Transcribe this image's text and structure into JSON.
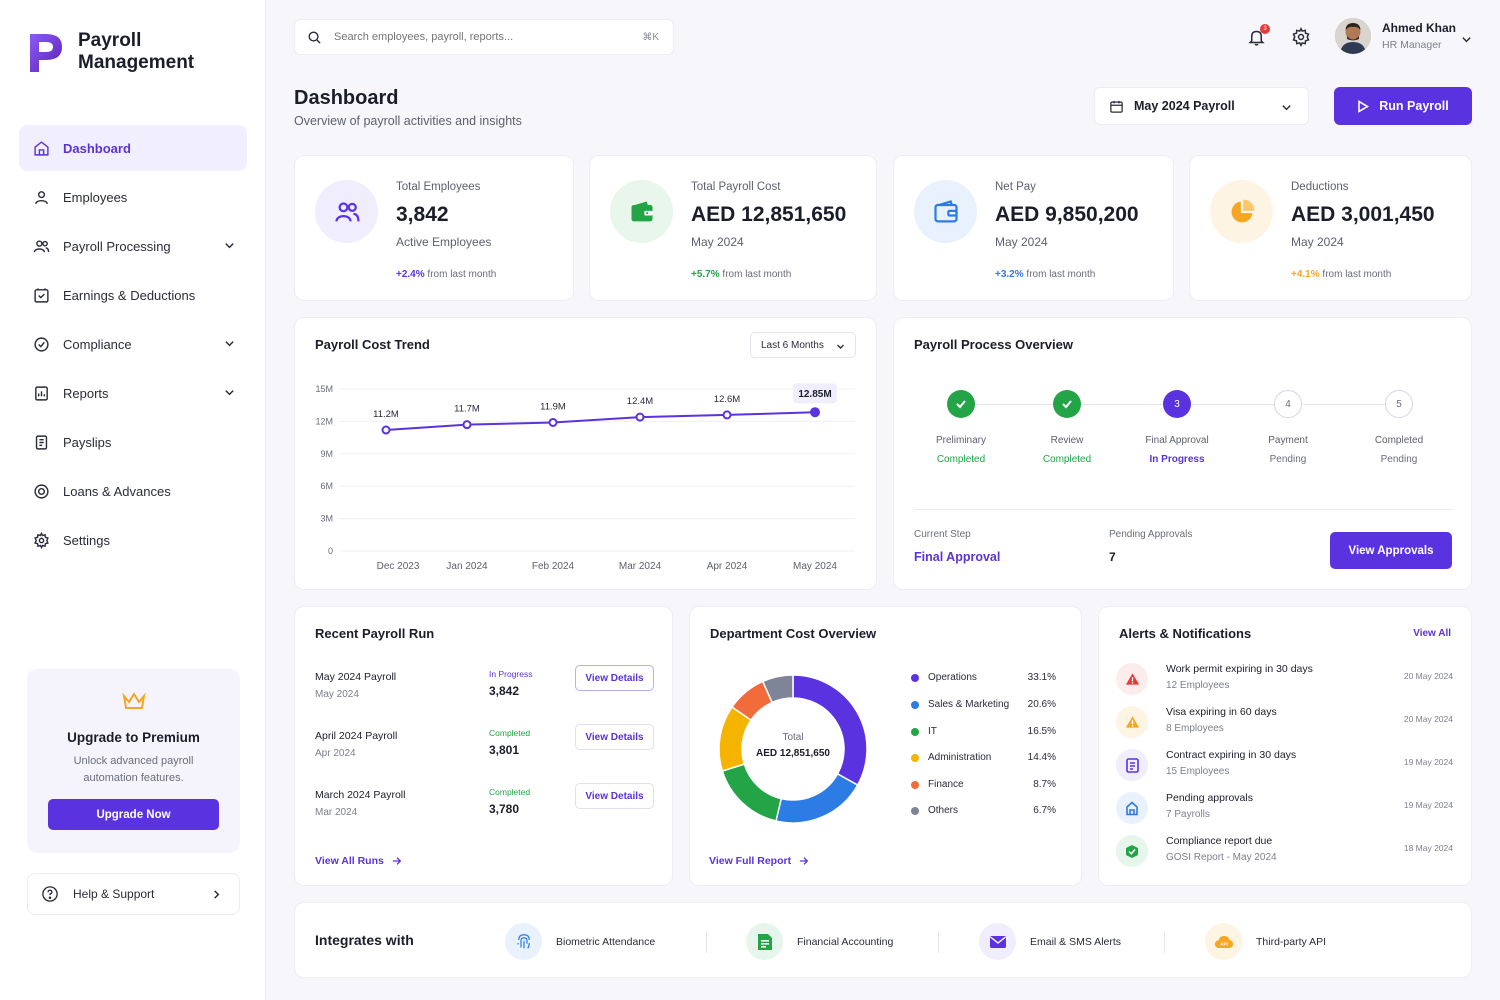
{
  "app": {
    "name_line1": "Payroll",
    "name_line2": "Management"
  },
  "colors": {
    "accent": "#5b32e0",
    "green": "#22a447",
    "blue": "#2d7be5",
    "orange": "#f5a623",
    "red": "#e53935"
  },
  "sidebar": {
    "items": [
      {
        "label": "Dashboard",
        "icon": "home-icon"
      },
      {
        "label": "Employees",
        "icon": "user-icon"
      },
      {
        "label": "Payroll Processing",
        "icon": "users-icon"
      },
      {
        "label": "Earnings & Deductions",
        "icon": "wallet-icon"
      },
      {
        "label": "Compliance",
        "icon": "check-circle-icon"
      },
      {
        "label": "Reports",
        "icon": "report-icon"
      },
      {
        "label": "Payslips",
        "icon": "document-icon"
      },
      {
        "label": "Loans & Advances",
        "icon": "coins-icon"
      },
      {
        "label": "Settings",
        "icon": "gear-icon"
      }
    ],
    "upgrade": {
      "title": "Upgrade to Premium",
      "subtitle": "Unlock advanced payroll automation features.",
      "button": "Upgrade Now"
    },
    "help": "Help & Support"
  },
  "topbar": {
    "search_placeholder": "Search employees, payroll, reports...",
    "shortcut": "⌘K",
    "notifications": "3",
    "user": {
      "name": "Ahmed Khan",
      "role": "HR Manager"
    }
  },
  "header": {
    "title": "Dashboard",
    "subtitle": "Overview of payroll activities and insights",
    "period": "May 2024 Payroll",
    "run_button": "Run Payroll"
  },
  "kpis": [
    {
      "label": "Total Employees",
      "value": "3,842",
      "sub": "Active Employees",
      "change": "+2.4%",
      "change_text": "from last month",
      "color": "#5b32e0"
    },
    {
      "label": "Total Payroll Cost",
      "value": "AED 12,851,650",
      "sub": "May 2024",
      "change": "+5.7%",
      "change_text": "from last month",
      "color": "#22a447"
    },
    {
      "label": "Net Pay",
      "value": "AED 9,850,200",
      "sub": "May 2024",
      "change": "+3.2%",
      "change_text": "from last month",
      "color": "#2d7be5"
    },
    {
      "label": "Deductions",
      "value": "AED 3,001,450",
      "sub": "May 2024",
      "change": "+4.1%",
      "change_text": "from last month",
      "color": "#f5a623"
    }
  ],
  "trend": {
    "title": "Payroll Cost Trend",
    "range": "Last 6 Months"
  },
  "chart_data": {
    "type": "line",
    "title": "Payroll Cost Trend",
    "categories": [
      "Dec 2023",
      "Jan 2024",
      "Feb 2024",
      "Mar 2024",
      "Apr 2024",
      "May 2024"
    ],
    "values": [
      11.2,
      11.7,
      11.9,
      12.4,
      12.6,
      12.85
    ],
    "labels": [
      "11.2M",
      "11.7M",
      "11.9M",
      "12.4M",
      "12.6M",
      "12.85M"
    ],
    "yticks": [
      "15M",
      "12M",
      "9M",
      "6M",
      "3M",
      "0"
    ],
    "ylim": [
      0,
      15
    ],
    "grid": true
  },
  "process": {
    "title": "Payroll Process Overview",
    "steps": [
      {
        "name": "Preliminary",
        "status": "Completed",
        "num": ""
      },
      {
        "name": "Review",
        "status": "Completed",
        "num": ""
      },
      {
        "name": "Final Approval",
        "status": "In Progress",
        "num": "3"
      },
      {
        "name": "Payment",
        "status": "Pending",
        "num": "4"
      },
      {
        "name": "Completed",
        "status": "Pending",
        "num": "5"
      }
    ],
    "current_step_label": "Current Step",
    "current_step": "Final Approval",
    "pending_label": "Pending Approvals",
    "pending": "7",
    "button": "View Approvals"
  },
  "recent": {
    "title": "Recent Payroll Run",
    "rows": [
      {
        "name": "May 2024 Payroll",
        "date": "May 2024",
        "status": "In Progress",
        "count": "3,842",
        "button": "View Details"
      },
      {
        "name": "April 2024 Payroll",
        "date": "Apr 2024",
        "status": "Completed",
        "count": "3,801",
        "button": "View Details"
      },
      {
        "name": "March 2024 Payroll",
        "date": "Mar 2024",
        "status": "Completed",
        "count": "3,780",
        "button": "View Details"
      }
    ],
    "link": "View All Runs"
  },
  "department": {
    "title": "Department Cost Overview",
    "center_label": "Total",
    "center_value": "AED 12,851,650",
    "segments": [
      {
        "name": "Operations",
        "pct": "33.1%",
        "value": 33.1,
        "color": "#5b32e0"
      },
      {
        "name": "Sales & Marketing",
        "pct": "20.6%",
        "value": 20.6,
        "color": "#2d7be5"
      },
      {
        "name": "IT",
        "pct": "16.5%",
        "value": 16.5,
        "color": "#22a447"
      },
      {
        "name": "Administration",
        "pct": "14.4%",
        "value": 14.4,
        "color": "#f5b400"
      },
      {
        "name": "Finance",
        "pct": "8.7%",
        "value": 8.7,
        "color": "#f26b3a"
      },
      {
        "name": "Others",
        "pct": "6.7%",
        "value": 6.7,
        "color": "#7d8597"
      }
    ],
    "link": "View Full Report"
  },
  "alerts": {
    "title": "Alerts & Notifications",
    "view_all": "View All",
    "items": [
      {
        "title": "Work permit expiring in 30 days",
        "sub": "12 Employees",
        "date": "20 May 2024",
        "color": "#e53935",
        "bg": "#fdecec",
        "icon": "warning-icon"
      },
      {
        "title": "Visa expiring in 60 days",
        "sub": "8 Employees",
        "date": "20 May 2024",
        "color": "#f5a623",
        "bg": "#fef4e4",
        "icon": "warning-icon"
      },
      {
        "title": "Contract expiring in 30 days",
        "sub": "15 Employees",
        "date": "19 May 2024",
        "color": "#5b32e0",
        "bg": "#f0edfd",
        "icon": "contract-icon"
      },
      {
        "title": "Pending approvals",
        "sub": "7 Payrolls",
        "date": "19 May 2024",
        "color": "#2d7be5",
        "bg": "#e9f1fd",
        "icon": "approval-icon"
      },
      {
        "title": "Compliance report due",
        "sub": "GOSI Report - May 2024",
        "date": "18 May 2024",
        "color": "#22a447",
        "bg": "#e7f6ec",
        "icon": "compliance-icon"
      }
    ]
  },
  "integrations": {
    "title": "Integrates with",
    "items": [
      {
        "label": "Biometric Attendance",
        "icon": "fingerprint-icon"
      },
      {
        "label": "Financial Accounting",
        "icon": "spreadsheet-icon"
      },
      {
        "label": "Email & SMS Alerts",
        "icon": "mail-icon"
      },
      {
        "label": "Third-party API",
        "icon": "cloud-api-icon"
      }
    ]
  }
}
